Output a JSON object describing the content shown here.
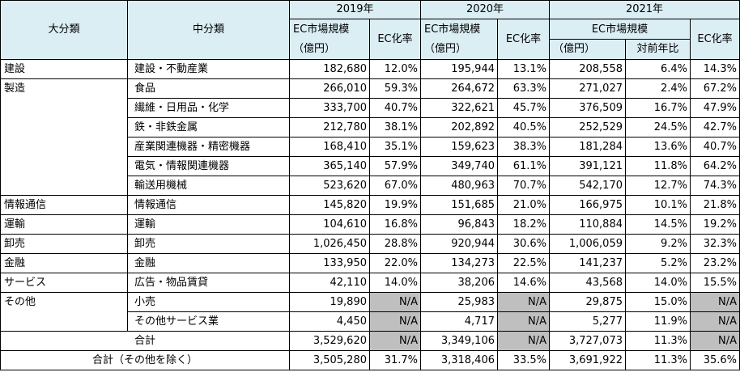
{
  "header": {
    "col_major": "大分類",
    "col_middle": "中分類",
    "years": [
      "2019年",
      "2020年",
      "2021年"
    ],
    "ec_market": "EC市場規模",
    "unit": "（億円）",
    "ec_rate": "EC化率",
    "yoy": "対前年比"
  },
  "rows": [
    {
      "major": "建設",
      "middle": "建設・不動産業",
      "v2019": "182,680",
      "r2019": "12.0%",
      "v2020": "195,944",
      "r2020": "13.1%",
      "v2021": "208,558",
      "yoy": "6.4%",
      "r2021": "14.3%"
    },
    {
      "major": "製造",
      "middle": "食品",
      "v2019": "266,010",
      "r2019": "59.3%",
      "v2020": "264,672",
      "r2020": "63.3%",
      "v2021": "271,027",
      "yoy": "2.4%",
      "r2021": "67.2%"
    },
    {
      "major": "",
      "middle": "繊維・日用品・化学",
      "v2019": "333,700",
      "r2019": "40.7%",
      "v2020": "322,621",
      "r2020": "45.7%",
      "v2021": "376,509",
      "yoy": "16.7%",
      "r2021": "47.9%"
    },
    {
      "major": "",
      "middle": "鉄・非鉄金属",
      "v2019": "212,780",
      "r2019": "38.1%",
      "v2020": "202,892",
      "r2020": "40.5%",
      "v2021": "252,529",
      "yoy": "24.5%",
      "r2021": "42.7%"
    },
    {
      "major": "",
      "middle": "産業関連機器・精密機器",
      "v2019": "168,410",
      "r2019": "35.1%",
      "v2020": "159,623",
      "r2020": "38.3%",
      "v2021": "181,284",
      "yoy": "13.6%",
      "r2021": "40.7%"
    },
    {
      "major": "",
      "middle": "電気・情報関連機器",
      "v2019": "365,140",
      "r2019": "57.9%",
      "v2020": "349,740",
      "r2020": "61.1%",
      "v2021": "391,121",
      "yoy": "11.8%",
      "r2021": "64.2%"
    },
    {
      "major": "",
      "middle": "輸送用機械",
      "v2019": "523,620",
      "r2019": "67.0%",
      "v2020": "480,963",
      "r2020": "70.7%",
      "v2021": "542,170",
      "yoy": "12.7%",
      "r2021": "74.3%"
    },
    {
      "major": "情報通信",
      "middle": "情報通信",
      "v2019": "145,820",
      "r2019": "19.9%",
      "v2020": "151,685",
      "r2020": "21.0%",
      "v2021": "166,975",
      "yoy": "10.1%",
      "r2021": "21.8%"
    },
    {
      "major": "運輸",
      "middle": "運輸",
      "v2019": "104,610",
      "r2019": "16.8%",
      "v2020": "96,843",
      "r2020": "18.2%",
      "v2021": "110,884",
      "yoy": "14.5%",
      "r2021": "19.2%"
    },
    {
      "major": "卸売",
      "middle": "卸売",
      "v2019": "1,026,450",
      "r2019": "28.8%",
      "v2020": "920,944",
      "r2020": "30.6%",
      "v2021": "1,006,059",
      "yoy": "9.2%",
      "r2021": "32.3%"
    },
    {
      "major": "金融",
      "middle": "金融",
      "v2019": "133,950",
      "r2019": "22.0%",
      "v2020": "134,273",
      "r2020": "22.5%",
      "v2021": "141,237",
      "yoy": "5.2%",
      "r2021": "23.2%"
    },
    {
      "major": "サービス",
      "middle": "広告・物品賃貸",
      "v2019": "42,110",
      "r2019": "14.0%",
      "v2020": "38,206",
      "r2020": "14.6%",
      "v2021": "43,568",
      "yoy": "14.0%",
      "r2021": "15.5%"
    },
    {
      "major": "その他",
      "middle": "小売",
      "v2019": "19,890",
      "r2019": "N/A",
      "v2020": "25,983",
      "r2020": "N/A",
      "v2021": "29,875",
      "yoy": "15.0%",
      "r2021": "N/A"
    },
    {
      "major": "",
      "middle": "その他サービス業",
      "v2019": "4,450",
      "r2019": "N/A",
      "v2020": "4,717",
      "r2020": "N/A",
      "v2021": "5,277",
      "yoy": "11.9%",
      "r2021": "N/A"
    }
  ],
  "totals": [
    {
      "label": "合計",
      "v2019": "3,529,620",
      "r2019": "N/A",
      "v2020": "3,349,106",
      "r2020": "N/A",
      "v2021": "3,727,073",
      "yoy": "11.3%",
      "r2021": "N/A"
    },
    {
      "label": "合計（その他を除く）",
      "v2019": "3,505,280",
      "r2019": "31.7%",
      "v2020": "3,318,406",
      "r2020": "33.5%",
      "v2021": "3,691,922",
      "yoy": "11.3%",
      "r2021": "35.6%"
    }
  ],
  "colors": {
    "header_bg": "#dbeef4",
    "na_bg": "#bfbfbf"
  }
}
